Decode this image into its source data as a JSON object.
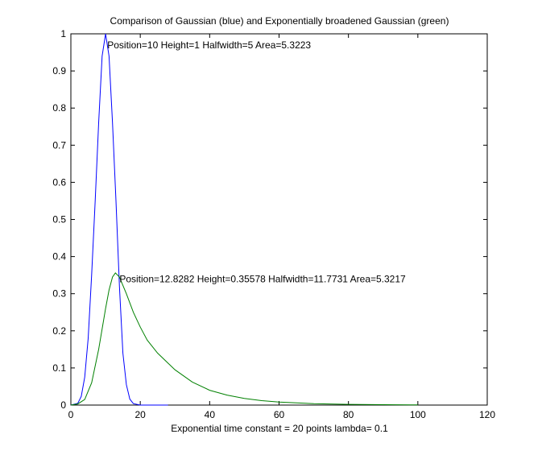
{
  "chart_data": {
    "type": "line",
    "title": "Comparison of Gaussian (blue) and Exponentially broadened Gaussian (green)",
    "xlabel": "Exponential time constant = 20 points    lambda= 0.1",
    "ylabel": "",
    "xlim": [
      0,
      120
    ],
    "ylim": [
      0,
      1
    ],
    "xticks": [
      0,
      20,
      40,
      60,
      80,
      100,
      120
    ],
    "yticks": [
      0,
      0.1,
      0.2,
      0.3,
      0.4,
      0.5,
      0.6,
      0.7,
      0.8,
      0.9,
      1
    ],
    "grid": false,
    "legend": "none",
    "series": [
      {
        "color": "#0000ff",
        "x": [
          0,
          2,
          3,
          4,
          5,
          6,
          7,
          8,
          9,
          10,
          11,
          12,
          13,
          14,
          15,
          16,
          17,
          18,
          20,
          28
        ],
        "y": [
          0,
          0.0047,
          0.0235,
          0.0753,
          0.18,
          0.351,
          0.55,
          0.76,
          0.94,
          1.0,
          0.94,
          0.76,
          0.55,
          0.32,
          0.14,
          0.055,
          0.016,
          0.004,
          0,
          0
        ]
      },
      {
        "color": "#008000",
        "x": [
          0,
          2,
          4,
          6,
          8,
          10,
          11,
          12,
          12.83,
          14,
          16,
          18,
          20,
          22,
          25,
          30,
          35,
          40,
          45,
          50,
          55,
          60,
          70,
          80,
          90,
          100
        ],
        "y": [
          0,
          0.003,
          0.015,
          0.06,
          0.15,
          0.26,
          0.31,
          0.345,
          0.356,
          0.345,
          0.3,
          0.25,
          0.21,
          0.175,
          0.14,
          0.095,
          0.062,
          0.04,
          0.027,
          0.018,
          0.012,
          0.008,
          0.004,
          0.002,
          0.001,
          0.0005
        ]
      }
    ],
    "annotations": [
      {
        "text": "Position=10   Height=1   Halfwidth=5   Area=5.3223",
        "x": 10.5,
        "y": 0.97
      },
      {
        "text": "Position=12.8282   Height=0.35578   Halfwidth=11.7731   Area=5.3217",
        "x": 14,
        "y": 0.34
      }
    ]
  }
}
